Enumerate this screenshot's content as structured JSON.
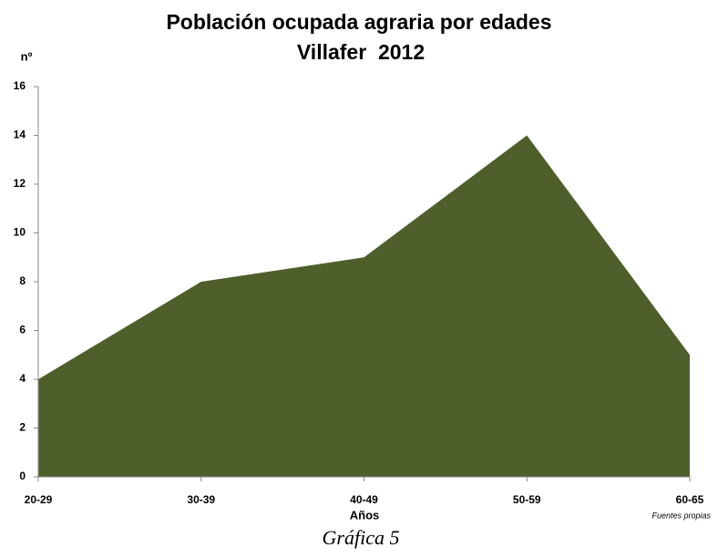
{
  "chart_data": {
    "type": "area",
    "title": "Población ocupada agraria por edades",
    "subtitle": "Villafer  2012",
    "y_label": "nº",
    "x_label": "Años",
    "annotation": "Fuentes propias",
    "caption": "Gráfica 5",
    "categories": [
      "20-29",
      "30-39",
      "40-49",
      "50-59",
      "60-65"
    ],
    "values": [
      4,
      8,
      9,
      14,
      5
    ],
    "color": "#4f5f2b",
    "ylim": [
      0,
      16
    ],
    "yticks": [
      0,
      2,
      4,
      6,
      8,
      10,
      12,
      14,
      16
    ],
    "grid": false
  }
}
